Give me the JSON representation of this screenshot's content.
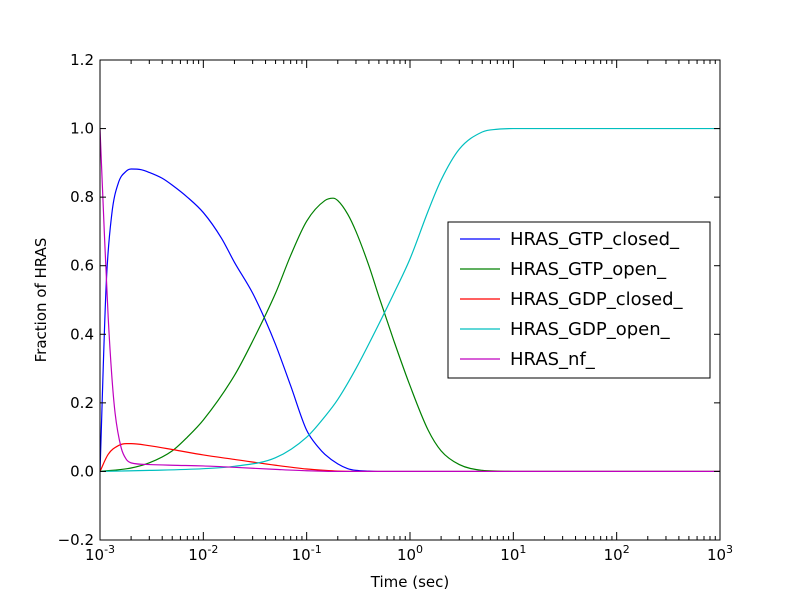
{
  "chart_data": {
    "type": "line",
    "title": "",
    "xlabel": "Time (sec)",
    "ylabel": "Fraction of HRAS",
    "xscale": "log",
    "xlim": [
      0.001,
      1000
    ],
    "ylim": [
      -0.2,
      1.2
    ],
    "yticks": [
      -0.2,
      0.0,
      0.2,
      0.4,
      0.6,
      0.8,
      1.0,
      1.2
    ],
    "ytick_labels": [
      "−0.2",
      "0.0",
      "0.2",
      "0.4",
      "0.6",
      "0.8",
      "1.0",
      "1.2"
    ],
    "xticks": [
      0.001,
      0.01,
      0.1,
      1,
      10,
      100,
      1000
    ],
    "xtick_labels": [
      {
        "base": "10",
        "exp": "-3"
      },
      {
        "base": "10",
        "exp": "-2"
      },
      {
        "base": "10",
        "exp": "-1"
      },
      {
        "base": "10",
        "exp": "0"
      },
      {
        "base": "10",
        "exp": "1"
      },
      {
        "base": "10",
        "exp": "2"
      },
      {
        "base": "10",
        "exp": "3"
      }
    ],
    "grid": false,
    "legend_position": "center-right",
    "series": [
      {
        "name": "HRAS_GTP_closed_",
        "color": "#0000ff",
        "x": [
          0.001,
          0.00115,
          0.0013,
          0.0015,
          0.0018,
          0.002,
          0.0025,
          0.003,
          0.004,
          0.005,
          0.007,
          0.01,
          0.015,
          0.02,
          0.03,
          0.04,
          0.05,
          0.07,
          0.1,
          0.13,
          0.15,
          0.2,
          0.25,
          0.3,
          0.4,
          0.5,
          0.7,
          1,
          10,
          100,
          1000
        ],
        "y": [
          0.0,
          0.55,
          0.75,
          0.84,
          0.876,
          0.882,
          0.88,
          0.872,
          0.855,
          0.835,
          0.8,
          0.755,
          0.68,
          0.61,
          0.52,
          0.44,
          0.37,
          0.25,
          0.12,
          0.07,
          0.05,
          0.022,
          0.008,
          0.003,
          0.001,
          0.0,
          0.0,
          0.0,
          0.0,
          0.0,
          0.0
        ]
      },
      {
        "name": "HRAS_GTP_open_",
        "color": "#008000",
        "x": [
          0.001,
          0.002,
          0.003,
          0.005,
          0.007,
          0.01,
          0.02,
          0.03,
          0.05,
          0.07,
          0.1,
          0.15,
          0.18,
          0.2,
          0.25,
          0.3,
          0.4,
          0.5,
          0.7,
          1,
          1.5,
          2,
          3,
          5,
          7,
          10,
          100,
          1000
        ],
        "y": [
          0.0,
          0.01,
          0.025,
          0.06,
          0.1,
          0.15,
          0.28,
          0.38,
          0.52,
          0.63,
          0.73,
          0.79,
          0.797,
          0.79,
          0.75,
          0.7,
          0.6,
          0.51,
          0.38,
          0.25,
          0.12,
          0.06,
          0.02,
          0.003,
          0.001,
          0.0,
          0.0,
          0.0
        ]
      },
      {
        "name": "HRAS_GDP_closed_",
        "color": "#ff0000",
        "x": [
          0.001,
          0.0012,
          0.0015,
          0.0018,
          0.002,
          0.003,
          0.005,
          0.01,
          0.02,
          0.05,
          0.1,
          0.15,
          0.2,
          0.3,
          1,
          10,
          100,
          1000
        ],
        "y": [
          0.0,
          0.05,
          0.075,
          0.081,
          0.081,
          0.075,
          0.064,
          0.048,
          0.035,
          0.018,
          0.007,
          0.003,
          0.001,
          0.0,
          0.0,
          0.0,
          0.0,
          0.0
        ]
      },
      {
        "name": "HRAS_GDP_open_",
        "color": "#00bfbf",
        "x": [
          0.001,
          0.003,
          0.01,
          0.02,
          0.05,
          0.1,
          0.15,
          0.2,
          0.3,
          0.5,
          0.7,
          1,
          1.5,
          2,
          3,
          5,
          7,
          10,
          100,
          1000
        ],
        "y": [
          0.0,
          0.003,
          0.008,
          0.015,
          0.04,
          0.1,
          0.16,
          0.21,
          0.3,
          0.43,
          0.52,
          0.62,
          0.76,
          0.85,
          0.94,
          0.99,
          0.998,
          1.0,
          1.0,
          1.0
        ]
      },
      {
        "name": "HRAS_nf_",
        "color": "#bf00bf",
        "x": [
          0.001,
          0.0011,
          0.0012,
          0.0013,
          0.0014,
          0.0016,
          0.0018,
          0.002,
          0.003,
          0.005,
          0.01,
          0.02,
          0.05,
          0.1,
          0.2,
          1,
          10,
          100,
          1000
        ],
        "y": [
          1.0,
          0.7,
          0.45,
          0.28,
          0.17,
          0.07,
          0.035,
          0.025,
          0.02,
          0.018,
          0.016,
          0.012,
          0.006,
          0.002,
          0.0,
          0.0,
          0.0,
          0.0,
          0.0
        ]
      }
    ]
  }
}
